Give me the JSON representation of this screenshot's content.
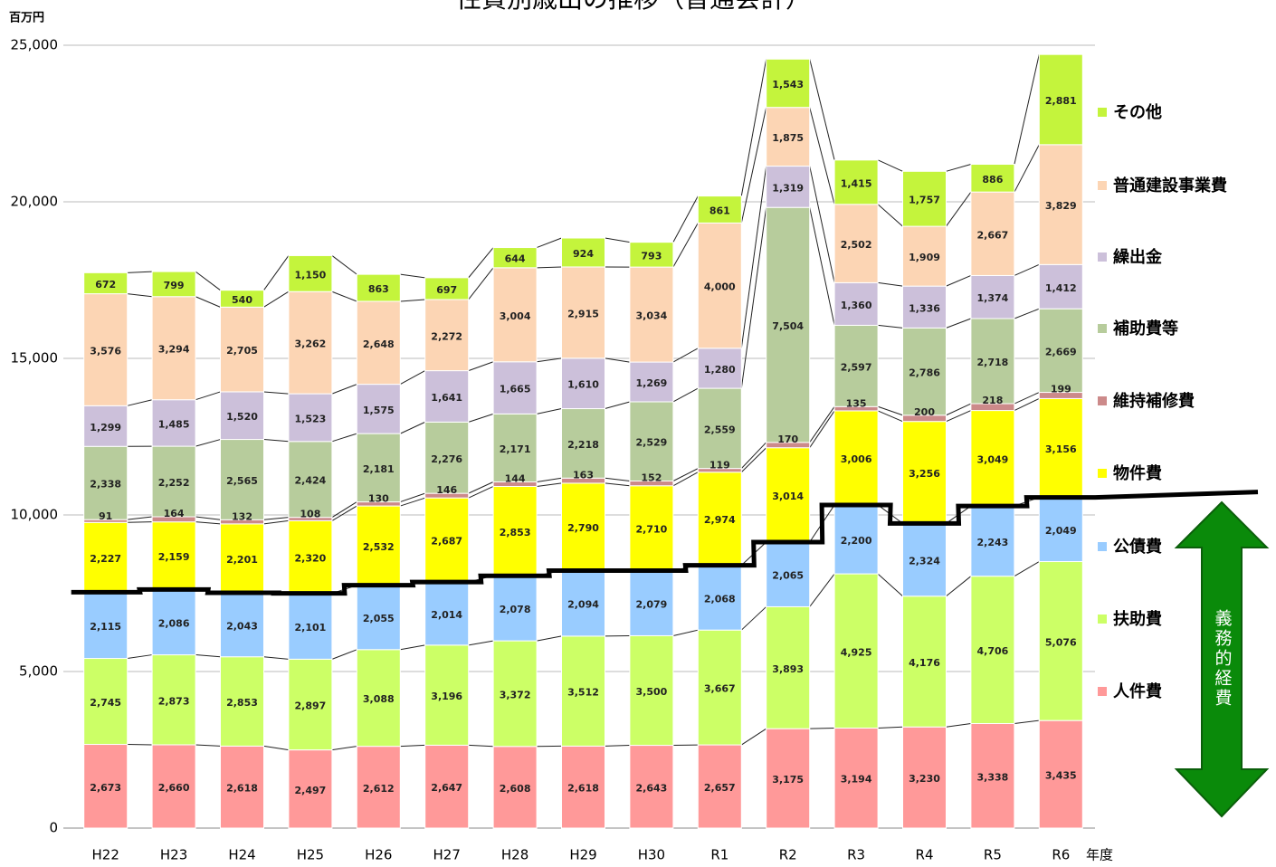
{
  "chart_data": {
    "type": "stacked_bar",
    "title": "性質別歳出の推移（普通会計）",
    "y_unit": "百万円",
    "x_label": "年度",
    "annotation": "義務的経費",
    "categories": [
      "H22",
      "H23",
      "H24",
      "H25",
      "H26",
      "H27",
      "H28",
      "H29",
      "H30",
      "R1",
      "R2",
      "R3",
      "R4",
      "R5",
      "R6"
    ],
    "ylim": [
      0,
      25000
    ],
    "yticks": [
      0,
      {
        "value": 5000,
        "label": "5,000"
      },
      {
        "value": 10000,
        "label": "10,000"
      },
      {
        "value": 15000,
        "label": "15,000"
      },
      {
        "value": 20000,
        "label": "20,000"
      },
      {
        "value": 25000,
        "label": "25,000"
      }
    ],
    "grid": true,
    "legend": "right",
    "series": [
      {
        "name": "人件費",
        "color": "#ff9999",
        "values": [
          2673,
          2660,
          2618,
          2497,
          2612,
          2647,
          2608,
          2618,
          2643,
          2657,
          3175,
          3194,
          3230,
          3338,
          3435
        ],
        "value_labels": [
          "2,673",
          "2,660",
          "2,618",
          "2,497",
          "2,612",
          "2,647",
          "2,608",
          "2,618",
          "2,643",
          "2,657",
          "3,175",
          "3,194",
          "3,230",
          "3,338",
          "3,435"
        ]
      },
      {
        "name": "扶助費",
        "color": "#ccff66",
        "values": [
          2745,
          2873,
          2853,
          2897,
          3088,
          3196,
          3372,
          3512,
          3500,
          3667,
          3893,
          4925,
          4176,
          4706,
          5076
        ],
        "value_labels": [
          "2,745",
          "2,873",
          "2,853",
          "2,897",
          "3,088",
          "3,196",
          "3,372",
          "3,512",
          "3,500",
          "3,667",
          "3,893",
          "4,925",
          "4,176",
          "4,706",
          "5,076"
        ]
      },
      {
        "name": "公債費",
        "color": "#99ccff",
        "values": [
          2115,
          2086,
          2043,
          2101,
          2055,
          2014,
          2078,
          2094,
          2079,
          2068,
          2065,
          2200,
          2324,
          2243,
          2049
        ],
        "value_labels": [
          "2,115",
          "2,086",
          "2,043",
          "2,101",
          "2,055",
          "2,014",
          "2,078",
          "2,094",
          "2,079",
          "2,068",
          "2,065",
          "2,200",
          "2,324",
          "2,243",
          "2,049"
        ]
      },
      {
        "name": "物件費",
        "color": "#ffff00",
        "values": [
          2227,
          2159,
          2201,
          2320,
          2532,
          2687,
          2853,
          2790,
          2710,
          2974,
          3014,
          3006,
          3256,
          3049,
          3156
        ],
        "value_labels": [
          "2,227",
          "2,159",
          "2,201",
          "2,320",
          "2,532",
          "2,687",
          "2,853",
          "2,790",
          "2,710",
          "2,974",
          "3,014",
          "3,006",
          "3,256",
          "3,049",
          "3,156"
        ]
      },
      {
        "name": "維持補修費",
        "color": "#cc8a8a",
        "values": [
          91,
          164,
          132,
          108,
          130,
          146,
          144,
          163,
          152,
          119,
          170,
          135,
          200,
          218,
          199
        ]
      },
      {
        "name": "補助費等",
        "color": "#b7cc9c",
        "values": [
          2338,
          2252,
          2565,
          2424,
          2181,
          2276,
          2171,
          2218,
          2529,
          2559,
          7504,
          2597,
          2786,
          2718,
          2669
        ],
        "value_labels": [
          "2,338",
          "2,252",
          "2,565",
          "2,424",
          "2,181",
          "2,276",
          "2,171",
          "2,218",
          "2,529",
          "2,559",
          "7,504",
          "2,597",
          "2,786",
          "2,718",
          "2,669"
        ]
      },
      {
        "name": "繰出金",
        "color": "#ccc0da",
        "values": [
          1299,
          1485,
          1520,
          1523,
          1575,
          1641,
          1665,
          1610,
          1269,
          1280,
          1319,
          1360,
          1336,
          1374,
          1412
        ],
        "value_labels": [
          "1,299",
          "1,485",
          "1,520",
          "1,523",
          "1,575",
          "1,641",
          "1,665",
          "1,610",
          "1,269",
          "1,280",
          "1,319",
          "1,360",
          "1,336",
          "1,374",
          "1,412"
        ]
      },
      {
        "name": "普通建設事業費",
        "color": "#fcd5b4",
        "values": [
          3576,
          3294,
          2705,
          3262,
          2648,
          2272,
          3004,
          2915,
          3034,
          4000,
          1875,
          2502,
          1909,
          2667,
          3829
        ],
        "value_labels": [
          "3,576",
          "3,294",
          "2,705",
          "3,262",
          "2,648",
          "2,272",
          "3,004",
          "2,915",
          "3,034",
          "4,000",
          "1,875",
          "2,502",
          "1,909",
          "2,667",
          "3,829"
        ]
      },
      {
        "name": "その他",
        "color": "#c4f43c",
        "values": [
          672,
          799,
          540,
          1150,
          863,
          697,
          644,
          924,
          793,
          861,
          1543,
          1415,
          1757,
          886,
          2881
        ],
        "value_labels": [
          "672",
          "799",
          "540",
          "1,150",
          "863",
          "697",
          "644",
          "924",
          "793",
          "861",
          "1,543",
          "1,415",
          "1,757",
          "886",
          "2,881"
        ]
      }
    ]
  }
}
